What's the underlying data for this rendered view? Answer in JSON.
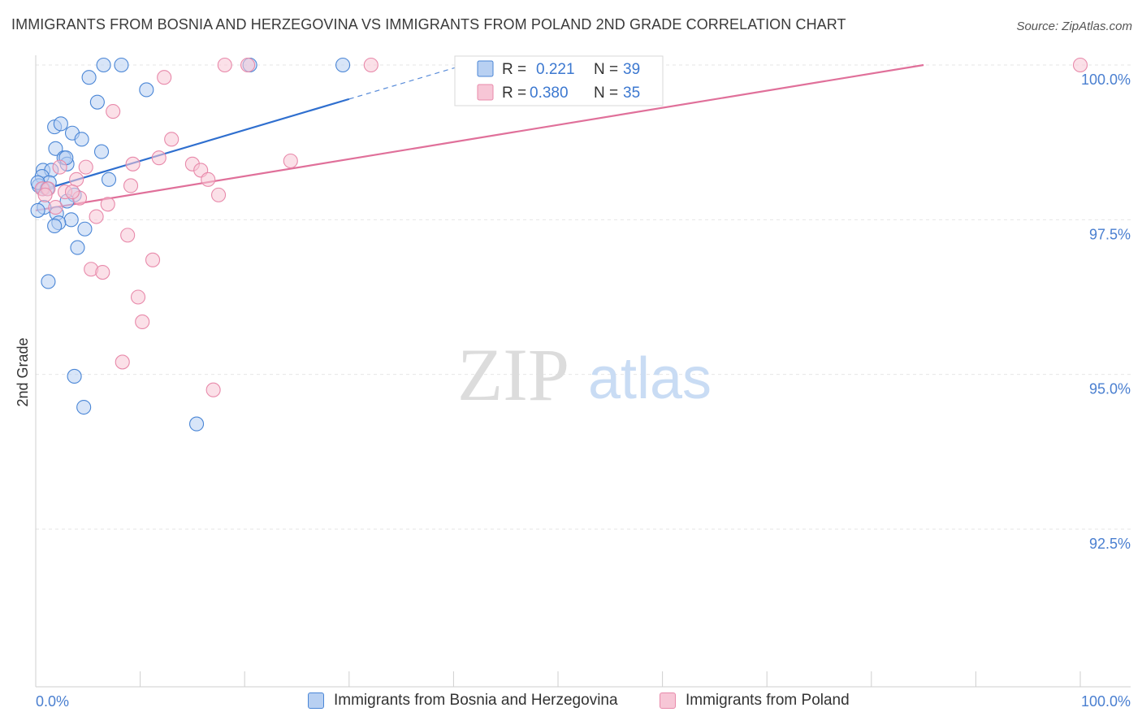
{
  "title": "IMMIGRANTS FROM BOSNIA AND HERZEGOVINA VS IMMIGRANTS FROM POLAND 2ND GRADE CORRELATION CHART",
  "source": "Source: ZipAtlas.com",
  "watermark": {
    "zip": "ZIP",
    "atlas": "atlas"
  },
  "colors": {
    "blue": "#4a86d6",
    "blue_fill": "#b8d0f2",
    "blue_line": "#2f6fcf",
    "pink": "#e889aa",
    "pink_fill": "#f7c6d6",
    "pink_line": "#e0709a",
    "axis_text": "#4a7fd0",
    "grid": "#e6e6e6"
  },
  "legend_top": {
    "rows": [
      {
        "r_label": "R =",
        "r_value": "0.221",
        "n_label": "N =",
        "n_value": "39"
      },
      {
        "r_label": "R =",
        "r_value": "0.380",
        "n_label": "N =",
        "n_value": "35"
      }
    ]
  },
  "legend_bottom": {
    "items": [
      "Immigrants from Bosnia and Herzegovina",
      "Immigrants from Poland"
    ]
  },
  "chart_data": {
    "type": "scatter",
    "title": "IMMIGRANTS FROM BOSNIA AND HERZEGOVINA VS IMMIGRANTS FROM POLAND 2ND GRADE CORRELATION CHART",
    "xlabel": "",
    "ylabel": "2nd Grade",
    "xlim": [
      0,
      100
    ],
    "ylim": [
      90.2,
      100.4
    ],
    "x_tick_labels": [
      "0.0%",
      "100.0%"
    ],
    "y_ticks": [
      92.5,
      95.0,
      97.5,
      100.0
    ],
    "y_tick_labels": [
      "92.5%",
      "95.0%",
      "97.5%",
      "100.0%"
    ],
    "series": [
      {
        "name": "Immigrants from Bosnia and Herzegovina",
        "color": "blue",
        "r": 0.221,
        "n": 39,
        "trend": {
          "x0": 0,
          "y0": 97.95,
          "x1": 30,
          "y1": 99.45,
          "dash_to_x": 43
        },
        "points": [
          [
            6.5,
            100.0
          ],
          [
            8.2,
            100.0
          ],
          [
            20.5,
            100.0
          ],
          [
            29.4,
            100.0
          ],
          [
            5.1,
            99.8
          ],
          [
            10.6,
            99.6
          ],
          [
            5.9,
            99.4
          ],
          [
            1.8,
            99.0
          ],
          [
            2.4,
            99.05
          ],
          [
            3.5,
            98.9
          ],
          [
            4.4,
            98.8
          ],
          [
            1.9,
            98.65
          ],
          [
            6.3,
            98.6
          ],
          [
            2.7,
            98.5
          ],
          [
            3.0,
            98.4
          ],
          [
            0.7,
            98.3
          ],
          [
            1.5,
            98.3
          ],
          [
            0.6,
            98.2
          ],
          [
            7.0,
            98.15
          ],
          [
            1.3,
            98.1
          ],
          [
            0.3,
            98.05
          ],
          [
            0.7,
            98.0
          ],
          [
            3.7,
            97.9
          ],
          [
            3.0,
            97.8
          ],
          [
            0.8,
            97.7
          ],
          [
            2.0,
            97.6
          ],
          [
            0.2,
            97.65
          ],
          [
            3.4,
            97.5
          ],
          [
            2.2,
            97.45
          ],
          [
            1.8,
            97.4
          ],
          [
            4.7,
            97.35
          ],
          [
            4.0,
            97.05
          ],
          [
            1.2,
            96.5
          ],
          [
            3.7,
            94.97
          ],
          [
            4.6,
            94.47
          ],
          [
            15.4,
            94.2
          ],
          [
            0.2,
            98.1
          ],
          [
            2.9,
            98.5
          ],
          [
            1.1,
            98.0
          ]
        ]
      },
      {
        "name": "Immigrants from Poland",
        "color": "pink",
        "r": 0.38,
        "n": 35,
        "trend": {
          "x0": 0,
          "y0": 97.65,
          "x1": 85,
          "y1": 100.0
        },
        "points": [
          [
            18.1,
            100.0
          ],
          [
            20.3,
            100.0
          ],
          [
            32.1,
            100.0
          ],
          [
            100.0,
            100.0
          ],
          [
            12.3,
            99.8
          ],
          [
            7.4,
            99.25
          ],
          [
            13.0,
            98.8
          ],
          [
            11.8,
            98.5
          ],
          [
            9.3,
            98.4
          ],
          [
            15.0,
            98.4
          ],
          [
            24.4,
            98.45
          ],
          [
            2.3,
            98.35
          ],
          [
            4.8,
            98.35
          ],
          [
            15.8,
            98.3
          ],
          [
            16.5,
            98.15
          ],
          [
            3.9,
            98.15
          ],
          [
            9.1,
            98.05
          ],
          [
            0.6,
            98.0
          ],
          [
            1.2,
            98.0
          ],
          [
            2.8,
            97.95
          ],
          [
            17.5,
            97.9
          ],
          [
            0.9,
            97.9
          ],
          [
            4.2,
            97.85
          ],
          [
            6.9,
            97.75
          ],
          [
            1.9,
            97.7
          ],
          [
            5.8,
            97.55
          ],
          [
            8.8,
            97.25
          ],
          [
            11.2,
            96.85
          ],
          [
            5.3,
            96.7
          ],
          [
            6.4,
            96.65
          ],
          [
            9.8,
            96.25
          ],
          [
            10.2,
            95.85
          ],
          [
            8.3,
            95.2
          ],
          [
            17.0,
            94.75
          ],
          [
            3.5,
            97.95
          ]
        ]
      }
    ]
  }
}
